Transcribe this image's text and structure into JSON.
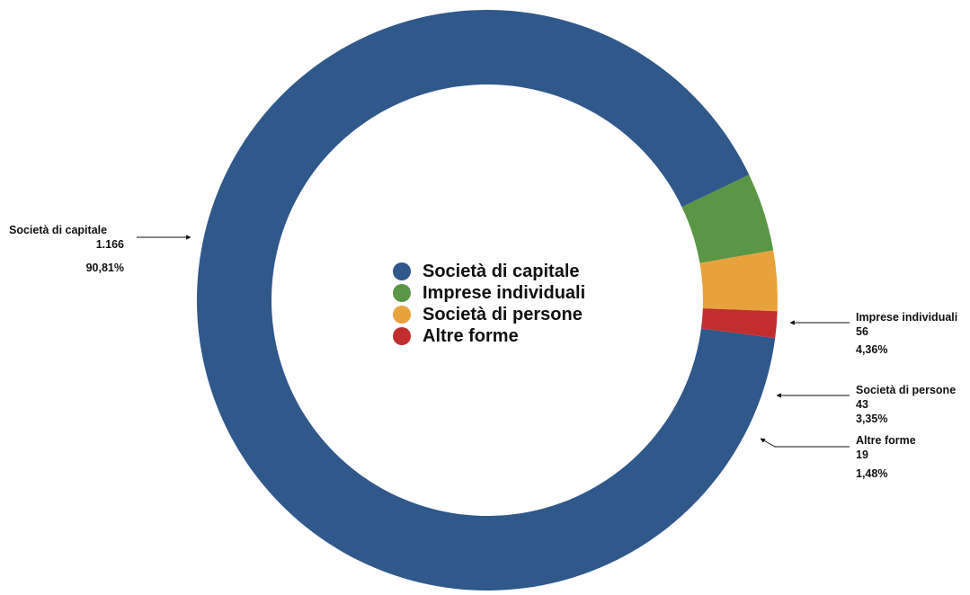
{
  "chart_data": {
    "type": "pie",
    "variant": "donut",
    "title": "",
    "categories": [
      "Società di capitale",
      "Imprese individuali",
      "Società di persone",
      "Altre forme"
    ],
    "values": [
      1166,
      56,
      43,
      19
    ],
    "value_labels": [
      "1.166",
      "56",
      "43",
      "19"
    ],
    "percent_labels": [
      "90,81%",
      "4,36%",
      "3,35%",
      "1,48%"
    ],
    "colors": [
      "#30588a",
      "#5a9645",
      "#e8a23c",
      "#c22e2e"
    ],
    "legend_placement": "center"
  }
}
